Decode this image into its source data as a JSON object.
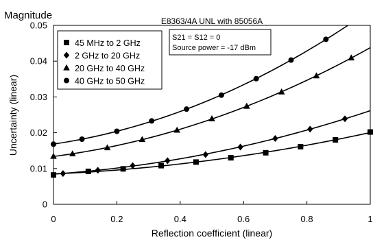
{
  "chart_data": {
    "type": "line",
    "corner_label": "Magnitude",
    "title": "E8363/4A  UNL with 85056A",
    "xlabel": "Reflection coefficient (linear)",
    "ylabel": "Uncertainty (linear)",
    "xlim": [
      0,
      1
    ],
    "ylim": [
      0,
      0.05
    ],
    "x_ticks": [
      0,
      0.2,
      0.4,
      0.6,
      0.8,
      1
    ],
    "x_tick_labels": [
      "0",
      "0.2",
      "0.4",
      "0.6",
      "0.8",
      "1"
    ],
    "y_ticks": [
      0,
      0.01,
      0.02,
      0.03,
      0.04,
      0.05
    ],
    "y_tick_labels": [
      "0",
      "0.01",
      "0.02",
      "0.03",
      "0.04",
      "0.05"
    ],
    "grid": false,
    "legend_position": "top-left",
    "annotation": [
      "S21 = S12 = 0",
      "Source power = -17 dBm"
    ],
    "series": [
      {
        "name": "45 MHz to 2 GHz",
        "marker": "square",
        "color": "#000000",
        "x": [
          0.0,
          0.11,
          0.22,
          0.34,
          0.45,
          0.56,
          0.67,
          0.78,
          0.89,
          1.0
        ],
        "y": [
          0.0082,
          0.0092,
          0.0099,
          0.0108,
          0.0118,
          0.013,
          0.0144,
          0.0161,
          0.018,
          0.0202
        ]
      },
      {
        "name": "2 GHz to 20 GHz",
        "marker": "diamond",
        "color": "#000000",
        "x": [
          0.03,
          0.14,
          0.25,
          0.36,
          0.48,
          0.59,
          0.7,
          0.81,
          0.92
        ],
        "y": [
          0.0086,
          0.0095,
          0.0108,
          0.0122,
          0.0139,
          0.016,
          0.0184,
          0.021,
          0.0239
        ]
      },
      {
        "name": "20 GHz to 40 GHz",
        "marker": "triangle",
        "color": "#000000",
        "x": [
          0.0,
          0.06,
          0.17,
          0.28,
          0.39,
          0.5,
          0.61,
          0.72,
          0.83,
          0.94
        ],
        "y": [
          0.0134,
          0.0141,
          0.0158,
          0.0181,
          0.0207,
          0.0239,
          0.0274,
          0.0314,
          0.0359,
          0.0409
        ]
      },
      {
        "name": "40 GHz to 50 GHz",
        "marker": "circle",
        "color": "#000000",
        "x": [
          0.0,
          0.09,
          0.2,
          0.31,
          0.42,
          0.53,
          0.64,
          0.75,
          0.86
        ],
        "y": [
          0.0168,
          0.0182,
          0.0204,
          0.0233,
          0.0266,
          0.0305,
          0.0351,
          0.0403,
          0.0461
        ]
      }
    ]
  }
}
